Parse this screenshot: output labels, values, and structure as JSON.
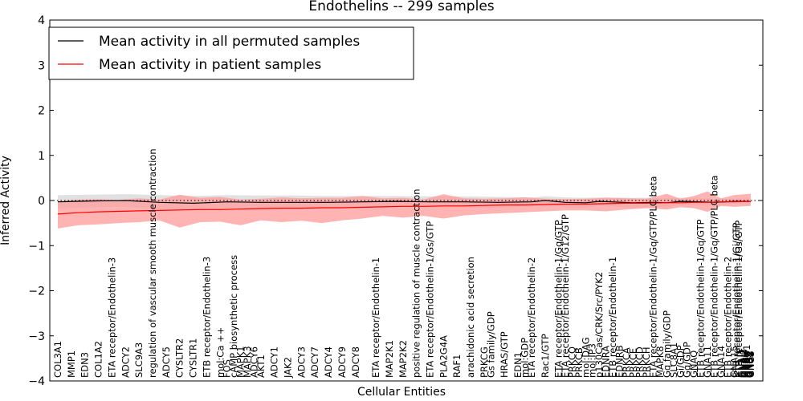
{
  "chart_data": {
    "type": "line",
    "title": "Endothelins -- 299 samples",
    "xlabel": "Cellular Entities",
    "ylabel": "Inferred Activity",
    "ylim": [
      -4,
      4
    ],
    "yticks": [
      "−4",
      "−3",
      "−2",
      "−1",
      "0",
      "1",
      "2",
      "3",
      "4"
    ],
    "grid": false,
    "legend_position": "top-left",
    "colors": {
      "permuted": "#000000",
      "patient": "#ff0000",
      "permuted_band": "#c8c8c8",
      "patient_band": "#ff9999"
    },
    "categories": [
      "COL3A1",
      "MMP1",
      "EDN3",
      "COL1A2",
      "ETA receptor/Endothelin-3",
      "ADCY2",
      "SLC9A3",
      "regulation of vascular smooth muscle contraction",
      "ADCY5",
      "CYSLTR2",
      "CYSLTR1",
      "ETB receptor/Endothelin-3",
      "mol:Ca ++",
      "FOS",
      "cAMP biosynthetic process",
      "MAPK1",
      "MAPK3",
      "ADCY6",
      "AKT1",
      "ADCY1",
      "JAK2",
      "ADCY3",
      "ADCY7",
      "ADCY4",
      "ADCY9",
      "ADCY8",
      "ETA receptor/Endothelin-1",
      "MAP2K1",
      "MAP2K2",
      "positive regulation of muscle contraction",
      "ETA receptor/Endothelin-1/Gs/GTP",
      "PLA2G4A",
      "RAF1",
      "arachidonic acid secretion",
      "PRKCG",
      "Gs family/GDP",
      "HRAS/GTP",
      "EDN1",
      "mol:GDP",
      "ETA receptor/Endothelin-2",
      "Rac1/GTP",
      "ETA receptor/Endothelin-1/Gq/GTP",
      "ETA receptor/Endothelin-1/G12/GTP",
      "PRKCQ",
      "PRKCB",
      "mol:DAG",
      "mol:IP3",
      "p130Cas/CRK/Src/PYK2",
      "EDNRA",
      "ETB receptor/Endothelin-1",
      "EDNRB",
      "PRKCA",
      "PRKCE",
      "PRKCD",
      "PRKCH",
      "ETA receptor/Endothelin-1/Gq/GTP/PLC beta",
      "MAPK8",
      "Gq family/GDP",
      "SLC8A1",
      "Gi/GDP",
      "Gq/GDP",
      "GNAQ",
      "ETB receptor/Endothelin-1/Gq/GTP",
      "GNA11",
      "ETB receptor/Endothelin-1/Gq/GTP/PLC beta",
      "GNA14",
      "ETB receptor/Endothelin-2",
      "GNA15",
      "ETB receptor/Endothelin-1/Gi/GTP",
      "ETB receptor/Endothelin-1/Gs/GTP",
      "GNAI1",
      "GNAI2",
      "GNAI3",
      "GNAS",
      "GNAO1",
      "GNAZ",
      "GNB1",
      "GNG2",
      "GNB2",
      "GNG3"
    ],
    "label_positions": [
      0,
      2,
      4,
      6,
      8,
      10,
      12,
      14,
      16,
      18,
      20,
      22,
      24,
      25,
      26,
      27,
      28,
      29,
      30,
      32,
      34,
      36,
      38,
      40,
      42,
      44,
      47,
      49,
      51,
      53,
      55,
      57,
      59,
      61,
      63,
      64,
      66,
      68,
      69,
      70,
      72,
      74,
      75,
      76,
      77,
      78,
      79,
      80,
      81,
      82,
      83,
      84,
      85,
      86,
      87,
      88,
      89,
      90,
      91,
      92,
      93,
      94,
      95,
      96,
      97,
      98,
      99,
      100,
      100.3,
      100.6,
      101,
      101.2,
      101.4,
      101.6,
      101.8,
      102,
      102.1,
      102.2,
      102.3,
      102.4
    ],
    "x_max": 103,
    "series": [
      {
        "name": "Mean activity in all permuted samples",
        "x": [
          0,
          5,
          10,
          15,
          20,
          25,
          30,
          35,
          40,
          45,
          50,
          55,
          60,
          65,
          70,
          72,
          75,
          78,
          80,
          85,
          88,
          90,
          92,
          95,
          97,
          100,
          102.4
        ],
        "values": [
          -0.03,
          -0.01,
          0.0,
          -0.04,
          -0.06,
          -0.03,
          -0.04,
          -0.04,
          -0.04,
          -0.03,
          -0.02,
          -0.03,
          -0.03,
          -0.04,
          -0.03,
          0.0,
          -0.04,
          -0.05,
          -0.02,
          -0.05,
          -0.04,
          -0.05,
          -0.02,
          -0.03,
          -0.04,
          -0.02,
          -0.02
        ],
        "upper": [
          0.12,
          0.13,
          0.14,
          0.12,
          0.1,
          0.12,
          0.11,
          0.11,
          0.1,
          0.1,
          0.1,
          0.09,
          0.09,
          0.08,
          0.07,
          0.09,
          0.07,
          0.06,
          0.07,
          0.06,
          0.06,
          0.05,
          0.06,
          0.05,
          0.04,
          0.03,
          0.03
        ],
        "lower": [
          -0.18,
          -0.15,
          -0.14,
          -0.2,
          -0.22,
          -0.18,
          -0.19,
          -0.19,
          -0.18,
          -0.16,
          -0.14,
          -0.15,
          -0.15,
          -0.16,
          -0.13,
          -0.09,
          -0.15,
          -0.16,
          -0.11,
          -0.16,
          -0.14,
          -0.15,
          -0.1,
          -0.11,
          -0.12,
          -0.07,
          -0.07
        ]
      },
      {
        "name": "Mean activity in patient samples",
        "x": [
          0,
          3,
          6,
          9,
          12,
          15,
          18,
          21,
          24,
          27,
          30,
          33,
          36,
          39,
          42,
          45,
          48,
          51,
          54,
          57,
          60,
          63,
          66,
          69,
          72,
          75,
          78,
          81,
          84,
          87,
          90,
          92,
          94,
          96,
          98,
          100,
          102.4
        ],
        "values": [
          -0.3,
          -0.27,
          -0.25,
          -0.24,
          -0.23,
          -0.22,
          -0.21,
          -0.2,
          -0.2,
          -0.19,
          -0.18,
          -0.17,
          -0.17,
          -0.16,
          -0.16,
          -0.15,
          -0.14,
          -0.13,
          -0.13,
          -0.12,
          -0.12,
          -0.11,
          -0.1,
          -0.1,
          -0.09,
          -0.08,
          -0.08,
          -0.07,
          -0.06,
          -0.06,
          -0.05,
          -0.05,
          -0.04,
          -0.04,
          -0.03,
          -0.03,
          -0.02
        ],
        "upper": [
          -0.02,
          0.02,
          0.03,
          0.01,
          0.05,
          0.02,
          0.13,
          0.06,
          0.08,
          0.02,
          0.04,
          0.07,
          0.05,
          0.06,
          0.06,
          0.1,
          0.05,
          0.06,
          0.02,
          0.14,
          0.05,
          0.04,
          0.05,
          0.07,
          0.04,
          0.03,
          0.04,
          0.06,
          0.05,
          0.04,
          0.15,
          0.04,
          0.1,
          0.2,
          0.05,
          0.12,
          0.15
        ],
        "lower": [
          -0.62,
          -0.55,
          -0.53,
          -0.5,
          -0.48,
          -0.44,
          -0.6,
          -0.48,
          -0.47,
          -0.55,
          -0.44,
          -0.48,
          -0.45,
          -0.5,
          -0.44,
          -0.4,
          -0.34,
          -0.38,
          -0.34,
          -0.4,
          -0.33,
          -0.3,
          -0.28,
          -0.26,
          -0.24,
          -0.22,
          -0.22,
          -0.24,
          -0.2,
          -0.17,
          -0.2,
          -0.15,
          -0.17,
          -0.25,
          -0.12,
          -0.14,
          -0.12
        ]
      }
    ]
  }
}
